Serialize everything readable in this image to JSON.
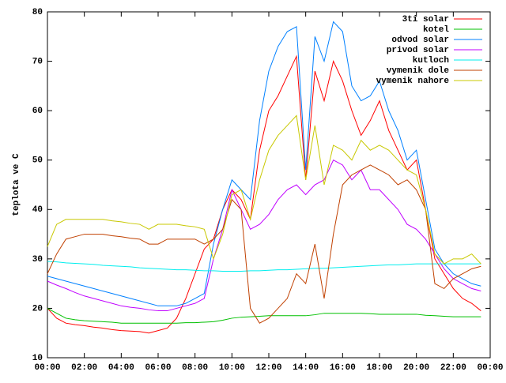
{
  "chart_data": {
    "type": "line",
    "y_label": "teplota ve C",
    "xlim": [
      0,
      24
    ],
    "xticks": [
      {
        "value": 0,
        "label": "00:00"
      },
      {
        "value": 2,
        "label": "02:00"
      },
      {
        "value": 4,
        "label": "04:00"
      },
      {
        "value": 6,
        "label": "06:00"
      },
      {
        "value": 8,
        "label": "08:00"
      },
      {
        "value": 10,
        "label": "10:00"
      },
      {
        "value": 12,
        "label": "12:00"
      },
      {
        "value": 14,
        "label": "14:00"
      },
      {
        "value": 16,
        "label": "16:00"
      },
      {
        "value": 18,
        "label": "18:00"
      },
      {
        "value": 20,
        "label": "20:00"
      },
      {
        "value": 22,
        "label": "22:00"
      },
      {
        "value": 24,
        "label": "00:00"
      }
    ],
    "ylim": [
      10,
      80
    ],
    "yticks": [
      10,
      20,
      30,
      40,
      50,
      60,
      70,
      80
    ],
    "legend": "top-right",
    "x": [
      0,
      0.5,
      1,
      1.5,
      2,
      2.5,
      3,
      3.5,
      4,
      4.5,
      5,
      5.5,
      6,
      6.5,
      7,
      7.5,
      8,
      8.5,
      9,
      9.5,
      10,
      10.5,
      11,
      11.5,
      12,
      12.5,
      13,
      13.5,
      14,
      14.5,
      15,
      15.5,
      16,
      16.5,
      17,
      17.5,
      18,
      18.5,
      19,
      19.5,
      20,
      20.5,
      21,
      21.5,
      22,
      22.5,
      23,
      23.5
    ],
    "series": [
      {
        "name": "3ti solar",
        "color": "#ff0000",
        "values": [
          20,
          18,
          17,
          16.7,
          16.5,
          16.2,
          16,
          15.7,
          15.5,
          15.4,
          15.3,
          15,
          15.5,
          16,
          18,
          22,
          27,
          32,
          34,
          40,
          44,
          42,
          38,
          52,
          60,
          63,
          67,
          71,
          46,
          68,
          62,
          70,
          66,
          60,
          55,
          58,
          62,
          56,
          52,
          48,
          50,
          40,
          30,
          27,
          24,
          22,
          21,
          19.5
        ]
      },
      {
        "name": "kotel",
        "color": "#00c000",
        "values": [
          20,
          19,
          18,
          17.7,
          17.5,
          17.4,
          17.3,
          17.2,
          17,
          17,
          17,
          17,
          17,
          17,
          17,
          17.1,
          17.1,
          17.2,
          17.3,
          17.6,
          18,
          18.2,
          18.3,
          18.4,
          18.5,
          18.5,
          18.5,
          18.5,
          18.5,
          18.7,
          19,
          19,
          19,
          19,
          19,
          18.9,
          18.8,
          18.8,
          18.8,
          18.8,
          18.8,
          18.6,
          18.5,
          18.4,
          18.3,
          18.3,
          18.3,
          18.3
        ]
      },
      {
        "name": "odvod solar",
        "color": "#0080ff",
        "values": [
          26.5,
          26,
          25.5,
          25,
          24.5,
          24,
          23.5,
          23,
          22.5,
          22,
          21.5,
          21,
          20.5,
          20.5,
          20.5,
          21,
          22,
          23,
          33,
          40,
          46,
          44,
          42,
          58,
          68,
          73,
          76,
          77,
          48,
          75,
          70,
          78,
          76,
          65,
          62,
          63,
          66,
          60,
          56,
          50,
          52,
          42,
          32,
          29,
          27,
          26,
          25,
          24.5
        ]
      },
      {
        "name": "privod solar",
        "color": "#c000ff",
        "values": [
          25.5,
          24.7,
          24,
          23.2,
          22.5,
          22,
          21.5,
          21,
          20.5,
          20.2,
          20,
          19.7,
          19.5,
          19.5,
          20,
          20.5,
          21,
          22,
          30,
          36,
          44,
          40,
          36,
          37,
          39,
          42,
          44,
          45,
          43,
          45,
          46,
          50,
          49,
          46,
          48,
          44,
          44,
          42,
          40,
          37,
          36,
          34,
          31,
          28,
          26,
          25,
          24,
          23.5
        ]
      },
      {
        "name": "kutloch",
        "color": "#00eeee",
        "values": [
          29.5,
          29.4,
          29.2,
          29.1,
          29,
          28.9,
          28.7,
          28.6,
          28.5,
          28.4,
          28.2,
          28.1,
          28,
          27.9,
          27.8,
          27.8,
          27.7,
          27.6,
          27.6,
          27.5,
          27.5,
          27.5,
          27.6,
          27.6,
          27.7,
          27.8,
          27.8,
          27.9,
          28,
          28.1,
          28.1,
          28.2,
          28.3,
          28.4,
          28.5,
          28.6,
          28.7,
          28.8,
          28.8,
          28.9,
          29,
          29,
          29,
          29,
          29,
          29,
          29,
          29
        ]
      },
      {
        "name": "vymenik dole",
        "color": "#c04000",
        "values": [
          27,
          31,
          34,
          34.5,
          35,
          35,
          35,
          34.7,
          34.5,
          34.2,
          34,
          33,
          33,
          34,
          34,
          34,
          34,
          33,
          34,
          36,
          42,
          40,
          20,
          17,
          18,
          20,
          22,
          27,
          25,
          33,
          22,
          35,
          45,
          47,
          48,
          49,
          48,
          47,
          45,
          46,
          44,
          40,
          25,
          24,
          26,
          27,
          28,
          28.5
        ]
      },
      {
        "name": "vymenik nahore",
        "color": "#c8c800",
        "values": [
          32.5,
          37,
          38,
          38,
          38,
          38,
          38,
          37.7,
          37.5,
          37.2,
          37,
          36,
          37,
          37,
          37,
          36.7,
          36.5,
          36,
          30,
          35,
          43,
          44,
          38,
          46,
          52,
          55,
          57,
          59,
          46,
          57,
          45,
          53,
          52,
          50,
          54,
          52,
          53,
          52,
          50,
          48,
          47,
          40,
          31,
          29,
          30,
          30,
          31,
          29
        ]
      }
    ]
  }
}
